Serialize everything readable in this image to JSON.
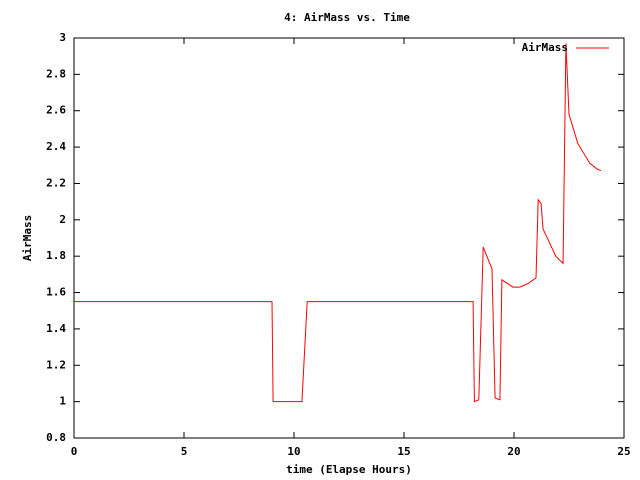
{
  "chart_data": {
    "type": "line",
    "title": "4: AirMass vs. Time",
    "x_label": "time (Elapse Hours)",
    "y_label": "AirMass",
    "x": [
      0,
      9.0,
      9.05,
      10.36,
      10.6,
      18.14,
      18.2,
      18.4,
      18.6,
      19.0,
      19.14,
      19.36,
      19.45,
      19.95,
      20.27,
      20.64,
      21.0,
      21.1,
      21.23,
      21.32,
      21.9,
      22.23,
      22.36,
      22.5,
      22.9,
      23.45,
      23.77,
      23.95
    ],
    "series": [
      {
        "name": "AirMass",
        "color": "#ff0000",
        "values": [
          1.55,
          1.55,
          1.0,
          1.0,
          1.55,
          1.55,
          1.0,
          1.01,
          1.85,
          1.73,
          1.02,
          1.01,
          1.67,
          1.63,
          1.63,
          1.65,
          1.68,
          2.11,
          2.09,
          1.95,
          1.8,
          1.76,
          2.97,
          2.58,
          2.42,
          2.31,
          2.28,
          2.27
        ]
      }
    ],
    "xlim": [
      0,
      25
    ],
    "xticks": [
      0,
      5,
      10,
      15,
      20,
      25
    ],
    "ylim": [
      0.8,
      3
    ],
    "yticks": [
      0.8,
      1,
      1.2,
      1.4,
      1.6,
      1.8,
      2,
      2.2,
      2.4,
      2.6,
      2.8,
      3
    ],
    "legend": "top-right"
  }
}
